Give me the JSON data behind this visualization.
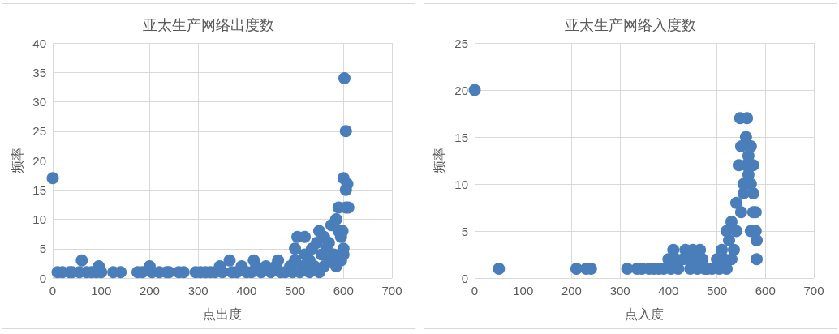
{
  "chart_data": [
    {
      "type": "scatter",
      "title": "亚太生产网络出度数",
      "xlabel": "点出度",
      "ylabel": "频率",
      "xlim": [
        0,
        700
      ],
      "xticks": [
        0,
        100,
        200,
        300,
        400,
        500,
        600,
        700
      ],
      "ylim": [
        0,
        40
      ],
      "yticks": [
        0,
        5,
        10,
        15,
        20,
        25,
        30,
        35,
        40
      ],
      "grid": true,
      "marker": "circle",
      "series": [
        {
          "color": "#4a7ebb",
          "x": [
            0,
            10,
            20,
            35,
            40,
            55,
            60,
            70,
            80,
            90,
            95,
            100,
            125,
            140,
            175,
            185,
            200,
            205,
            220,
            235,
            240,
            260,
            270,
            295,
            305,
            315,
            325,
            335,
            345,
            350,
            365,
            370,
            380,
            390,
            400,
            410,
            415,
            420,
            430,
            440,
            450,
            460,
            465,
            470,
            480,
            490,
            495,
            500,
            500,
            505,
            510,
            515,
            520,
            520,
            530,
            530,
            535,
            540,
            545,
            550,
            550,
            555,
            560,
            560,
            565,
            570,
            570,
            575,
            580,
            585,
            585,
            590,
            590,
            595,
            595,
            598,
            600,
            600,
            600,
            602,
            605,
            605,
            605,
            608,
            610
          ],
          "values": [
            17,
            1,
            1,
            1,
            1,
            1,
            3,
            1,
            1,
            1,
            2,
            1,
            1,
            1,
            1,
            1,
            2,
            1,
            1,
            1,
            1,
            1,
            1,
            1,
            1,
            1,
            1,
            1,
            2,
            1,
            3,
            1,
            1,
            2,
            1,
            1,
            3,
            2,
            1,
            2,
            1,
            2,
            3,
            1,
            1,
            2,
            1,
            3,
            5,
            7,
            1,
            2,
            7,
            4,
            1,
            3,
            5,
            2,
            6,
            8,
            1,
            4,
            7,
            2,
            5,
            3,
            6,
            9,
            4,
            10,
            2,
            12,
            8,
            7,
            3,
            8,
            5,
            17,
            4,
            34,
            25,
            15,
            12,
            16,
            12
          ]
        }
      ]
    },
    {
      "type": "scatter",
      "title": "亚太生产网络入度数",
      "xlabel": "点入度",
      "ylabel": "频率",
      "xlim": [
        0,
        700
      ],
      "xticks": [
        0,
        100,
        200,
        300,
        400,
        500,
        600,
        700
      ],
      "ylim": [
        0,
        25
      ],
      "yticks": [
        0,
        5,
        10,
        15,
        20,
        25
      ],
      "grid": true,
      "marker": "circle",
      "series": [
        {
          "color": "#4a7ebb",
          "x": [
            0,
            50,
            210,
            230,
            240,
            315,
            335,
            345,
            360,
            370,
            380,
            390,
            400,
            405,
            410,
            415,
            420,
            430,
            435,
            440,
            445,
            450,
            455,
            460,
            465,
            470,
            475,
            480,
            490,
            500,
            505,
            510,
            515,
            520,
            520,
            525,
            530,
            530,
            535,
            540,
            540,
            545,
            548,
            550,
            550,
            555,
            555,
            560,
            560,
            562,
            565,
            565,
            570,
            570,
            570,
            575,
            575,
            575,
            580,
            580,
            582,
            582
          ],
          "values": [
            20,
            1,
            1,
            1,
            1,
            1,
            1,
            1,
            1,
            1,
            1,
            1,
            2,
            1,
            3,
            2,
            1,
            2,
            3,
            2,
            1,
            3,
            2,
            1,
            3,
            2,
            1,
            1,
            1,
            2,
            1,
            3,
            2,
            5,
            1,
            4,
            6,
            2,
            3,
            5,
            8,
            12,
            17,
            7,
            14,
            9,
            10,
            15,
            12,
            17,
            13,
            11,
            14,
            10,
            5,
            12,
            9,
            7,
            7,
            5,
            4,
            2
          ]
        }
      ]
    }
  ]
}
